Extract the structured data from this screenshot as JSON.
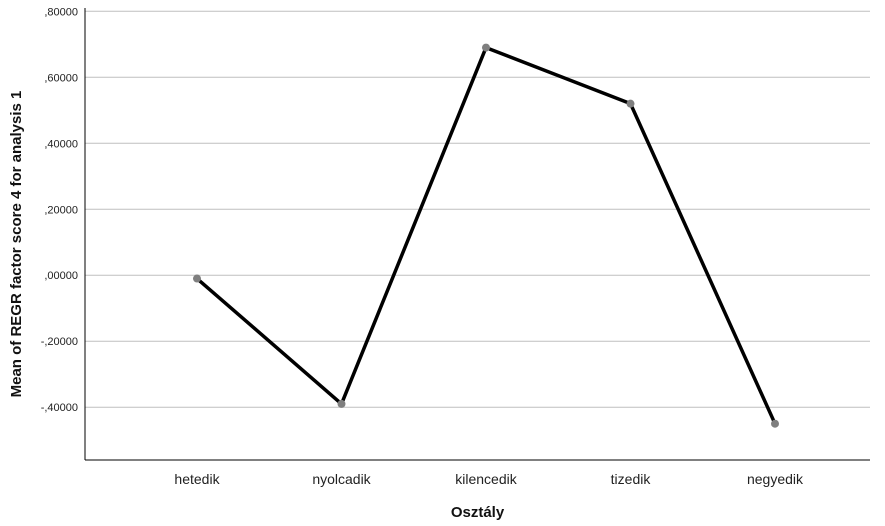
{
  "chart_data": {
    "type": "line",
    "xlabel": "Osztály",
    "ylabel": "Mean of REGR factor score   4 for analysis 1",
    "categories": [
      "hetedik",
      "nyolcadik",
      "kilencedik",
      "tizedik",
      "negyedik"
    ],
    "series": [
      {
        "values": [
          -0.01,
          -0.39,
          0.69,
          0.52,
          -0.45
        ]
      }
    ],
    "ylim": [
      -0.56,
      0.81
    ],
    "yticks": [
      0.8,
      0.6,
      0.4,
      0.2,
      0.0,
      -0.2,
      -0.4
    ],
    "ytick_labels": [
      ",80000",
      ",60000",
      ",40000",
      ",20000",
      ",00000",
      "-,20000",
      "-,40000"
    ],
    "grid": true,
    "legend": "none",
    "colors": {
      "line": "#000000",
      "marker": "#7f7f7f",
      "grid": "#bfbfbf",
      "axis": "#000000"
    }
  }
}
